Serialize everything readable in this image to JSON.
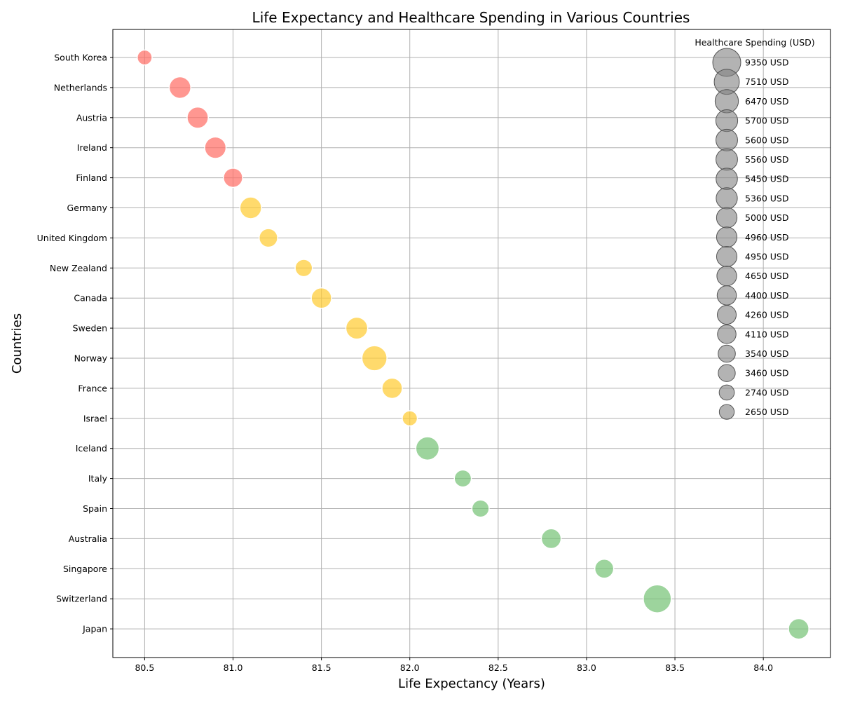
{
  "chart_data": {
    "type": "scatter",
    "title": "Life Expectancy and Healthcare Spending in Various Countries",
    "xlabel": "Life Expectancy (Years)",
    "ylabel": "Countries",
    "xlim": [
      80.32,
      84.38
    ],
    "xticks": [
      "80.5",
      "81.0",
      "81.5",
      "82.0",
      "82.5",
      "83.0",
      "83.5",
      "84.0"
    ],
    "grid": true,
    "legend": {
      "title": "Healthcare Spending (USD)",
      "placement": "top-right",
      "entries": [
        "9350 USD",
        "7510 USD",
        "6470 USD",
        "5700 USD",
        "5600 USD",
        "5560 USD",
        "5450 USD",
        "5360 USD",
        "5000 USD",
        "4960 USD",
        "4950 USD",
        "4650 USD",
        "4400 USD",
        "4260 USD",
        "4110 USD",
        "3540 USD",
        "3460 USD",
        "2740 USD",
        "2650 USD"
      ],
      "values": [
        9350,
        7510,
        6470,
        5700,
        5600,
        5560,
        5450,
        5360,
        5000,
        4960,
        4950,
        4650,
        4400,
        4260,
        4110,
        3540,
        3460,
        2740,
        2650
      ]
    },
    "colors": {
      "red": "#ff6f66",
      "yellow": "#ffcc33",
      "green": "#77c477",
      "legend": "#808080"
    },
    "points": [
      {
        "country": "South Korea",
        "life_expectancy": 80.5,
        "spending": 2650,
        "group": "red"
      },
      {
        "country": "Netherlands",
        "life_expectancy": 80.7,
        "spending": 5560,
        "group": "red"
      },
      {
        "country": "Austria",
        "life_expectancy": 80.8,
        "spending": 5360,
        "group": "red"
      },
      {
        "country": "Ireland",
        "life_expectancy": 80.9,
        "spending": 5450,
        "group": "red"
      },
      {
        "country": "Finland",
        "life_expectancy": 81.0,
        "spending": 4400,
        "group": "red"
      },
      {
        "country": "Germany",
        "life_expectancy": 81.1,
        "spending": 5600,
        "group": "yellow"
      },
      {
        "country": "United Kingdom",
        "life_expectancy": 81.2,
        "spending": 4110,
        "group": "yellow"
      },
      {
        "country": "New Zealand",
        "life_expectancy": 81.4,
        "spending": 3540,
        "group": "yellow"
      },
      {
        "country": "Canada",
        "life_expectancy": 81.5,
        "spending": 4950,
        "group": "yellow"
      },
      {
        "country": "Sweden",
        "life_expectancy": 81.7,
        "spending": 5700,
        "group": "yellow"
      },
      {
        "country": "Norway",
        "life_expectancy": 81.8,
        "spending": 7510,
        "group": "yellow"
      },
      {
        "country": "France",
        "life_expectancy": 81.9,
        "spending": 4960,
        "group": "yellow"
      },
      {
        "country": "Israel",
        "life_expectancy": 82.0,
        "spending": 2740,
        "group": "yellow"
      },
      {
        "country": "Iceland",
        "life_expectancy": 82.1,
        "spending": 6470,
        "group": "green"
      },
      {
        "country": "Italy",
        "life_expectancy": 82.3,
        "spending": 3460,
        "group": "green"
      },
      {
        "country": "Spain",
        "life_expectancy": 82.4,
        "spending": 3540,
        "group": "green"
      },
      {
        "country": "Australia",
        "life_expectancy": 82.8,
        "spending": 4650,
        "group": "green"
      },
      {
        "country": "Singapore",
        "life_expectancy": 83.1,
        "spending": 4260,
        "group": "green"
      },
      {
        "country": "Switzerland",
        "life_expectancy": 83.4,
        "spending": 9350,
        "group": "green"
      },
      {
        "country": "Japan",
        "life_expectancy": 84.2,
        "spending": 5000,
        "group": "green"
      }
    ]
  }
}
